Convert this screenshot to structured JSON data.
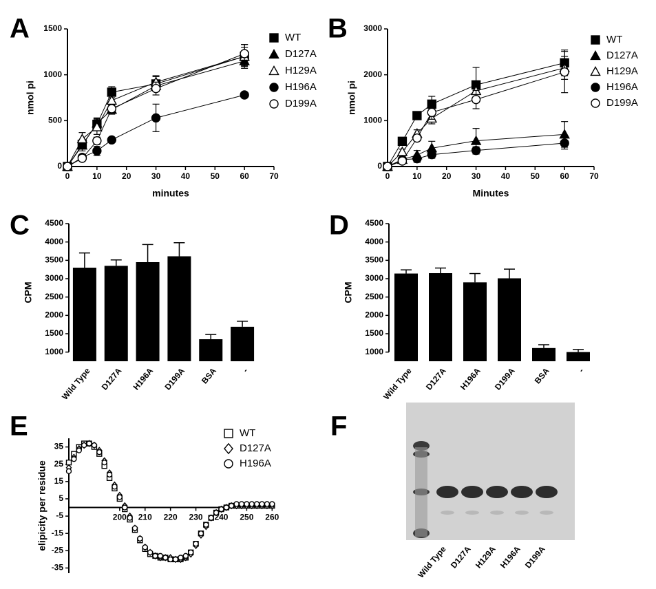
{
  "panel_labels": [
    "A",
    "B",
    "C",
    "D",
    "E",
    "F"
  ],
  "chart_data": [
    {
      "type": "scatter",
      "x_label": "minutes",
      "y_label": "nmol pi",
      "x": [
        0,
        5,
        10,
        15,
        30,
        60
      ],
      "xlim": [
        0,
        70
      ],
      "xticks": [
        0,
        10,
        20,
        30,
        40,
        50,
        60,
        70
      ],
      "ylim": [
        0,
        1500
      ],
      "yticks": [
        0,
        500,
        1000,
        1500
      ],
      "fit_curve": true,
      "series": [
        {
          "name": "WT",
          "color": "#000000",
          "marker": "square",
          "filled": true,
          "values": [
            0,
            240,
            460,
            810,
            900,
            1200
          ],
          "errors": [
            0,
            50,
            60,
            60,
            80,
            130
          ]
        },
        {
          "name": "D127A",
          "color": "#000000",
          "marker": "triangle",
          "filled": true,
          "values": [
            0,
            230,
            470,
            620,
            880,
            1150
          ],
          "errors": [
            0,
            60,
            60,
            50,
            60,
            60
          ]
        },
        {
          "name": "H129A",
          "color": "#000000",
          "marker": "triangle",
          "filled": false,
          "values": [
            0,
            300,
            430,
            720,
            920,
            1200
          ],
          "errors": [
            0,
            70,
            80,
            60,
            70,
            100
          ]
        },
        {
          "name": "H196A",
          "color": "#000000",
          "marker": "circle",
          "filled": true,
          "values": [
            0,
            100,
            170,
            290,
            530,
            780
          ],
          "errors": [
            0,
            30,
            50,
            20,
            150,
            20
          ]
        },
        {
          "name": "D199A",
          "color": "#000000",
          "marker": "circle",
          "filled": false,
          "values": [
            0,
            90,
            280,
            630,
            850,
            1230
          ],
          "errors": [
            0,
            30,
            40,
            40,
            70,
            100
          ]
        }
      ]
    },
    {
      "type": "scatter",
      "x_label": "Minutes",
      "y_label": "nmol pi",
      "x": [
        0,
        5,
        10,
        15,
        30,
        60
      ],
      "xlim": [
        0,
        70
      ],
      "xticks": [
        0,
        10,
        20,
        30,
        40,
        50,
        60,
        70
      ],
      "ylim": [
        0,
        3000
      ],
      "yticks": [
        0,
        1000,
        2000,
        3000
      ],
      "fit_curve": true,
      "series": [
        {
          "name": "WT",
          "color": "#000000",
          "marker": "square",
          "filled": true,
          "values": [
            0,
            550,
            1110,
            1360,
            1780,
            2260
          ],
          "errors": [
            0,
            50,
            70,
            170,
            380,
            280
          ]
        },
        {
          "name": "D127A",
          "color": "#000000",
          "marker": "triangle",
          "filled": true,
          "values": [
            0,
            150,
            250,
            400,
            560,
            700
          ],
          "errors": [
            0,
            50,
            100,
            150,
            270,
            280
          ]
        },
        {
          "name": "H129A",
          "color": "#000000",
          "marker": "triangle",
          "filled": false,
          "values": [
            0,
            320,
            720,
            1050,
            1650,
            2150
          ],
          "errors": [
            0,
            60,
            80,
            120,
            200,
            250
          ]
        },
        {
          "name": "H196A",
          "color": "#000000",
          "marker": "circle",
          "filled": true,
          "values": [
            0,
            150,
            170,
            260,
            350,
            510
          ],
          "errors": [
            0,
            40,
            80,
            80,
            80,
            130
          ]
        },
        {
          "name": "D199A",
          "color": "#000000",
          "marker": "circle",
          "filled": false,
          "values": [
            0,
            120,
            620,
            1180,
            1460,
            2060
          ],
          "errors": [
            0,
            30,
            60,
            150,
            200,
            450
          ]
        }
      ]
    },
    {
      "type": "bar",
      "y_label": "CPM",
      "categories": [
        "Wild Type",
        "D127A",
        "H196A",
        "D199A",
        "BSA",
        "-"
      ],
      "values": [
        3300,
        3350,
        3450,
        3610,
        1350,
        1690
      ],
      "errors": [
        400,
        160,
        480,
        370,
        130,
        150
      ],
      "color": "#000000",
      "ylim": [
        750,
        4500
      ],
      "yticks": [
        1000,
        1500,
        2000,
        2500,
        3000,
        3500,
        4000,
        4500
      ]
    },
    {
      "type": "bar",
      "y_label": "CPM",
      "categories": [
        "Wild Type",
        "D127A",
        "H196A",
        "D199A",
        "BSA",
        "-"
      ],
      "values": [
        3140,
        3150,
        2900,
        3010,
        1110,
        1000
      ],
      "errors": [
        100,
        140,
        240,
        250,
        90,
        70
      ],
      "color": "#000000",
      "ylim": [
        750,
        4500
      ],
      "yticks": [
        1000,
        1500,
        2000,
        2500,
        3000,
        3500,
        4000,
        4500
      ]
    },
    {
      "type": "scatter",
      "y_label": "elipicity per residue",
      "x_axis_at_zero": true,
      "x": [
        180,
        182,
        184,
        186,
        188,
        190,
        192,
        194,
        196,
        198,
        200,
        202,
        204,
        206,
        208,
        210,
        212,
        214,
        216,
        218,
        220,
        222,
        224,
        226,
        228,
        230,
        232,
        234,
        236,
        238,
        240,
        242,
        244,
        246,
        248,
        250,
        252,
        254,
        256,
        258,
        260
      ],
      "xlim": [
        180,
        261
      ],
      "xticks": [
        200,
        210,
        220,
        230,
        240,
        250,
        260
      ],
      "ylim": [
        -38,
        40
      ],
      "yticks": [
        -35,
        -25,
        -15,
        -5,
        5,
        15,
        25,
        35
      ],
      "series": [
        {
          "name": "WT",
          "color": "#000000",
          "marker": "square",
          "filled": false,
          "values": [
            26,
            31,
            35,
            37,
            37,
            35,
            31,
            24,
            17,
            11,
            5,
            -1,
            -7,
            -13,
            -19,
            -24,
            -27,
            -28,
            -29,
            -29,
            -30,
            -30,
            -30,
            -29,
            -26,
            -21,
            -15,
            -10,
            -6,
            -3,
            -1,
            0,
            1,
            1,
            1,
            1,
            1,
            1,
            1,
            1,
            1
          ]
        },
        {
          "name": "D127A",
          "color": "#000000",
          "marker": "diamond",
          "filled": false,
          "values": [
            23,
            29,
            34,
            36,
            37,
            36,
            33,
            27,
            20,
            13,
            7,
            1,
            -5,
            -12,
            -18,
            -23,
            -26,
            -28,
            -29,
            -29,
            -29,
            -30,
            -30,
            -29,
            -27,
            -22,
            -16,
            -11,
            -6,
            -3,
            -1,
            0,
            1,
            1,
            1,
            1,
            1,
            1,
            1,
            1,
            1
          ]
        },
        {
          "name": "H196A",
          "color": "#000000",
          "marker": "circle",
          "filled": false,
          "values": [
            21,
            28,
            33,
            36,
            37,
            36,
            32,
            26,
            19,
            12,
            6,
            0,
            -6,
            -12,
            -18,
            -23,
            -26,
            -28,
            -28,
            -29,
            -30,
            -30,
            -29,
            -28,
            -26,
            -21,
            -15,
            -10,
            -6,
            -3,
            -1,
            0,
            1,
            2,
            2,
            2,
            2,
            2,
            2,
            2,
            2
          ]
        }
      ]
    },
    {
      "type": "gel",
      "categories": [
        "Wild Type",
        "D127A",
        "H129A",
        "H196A",
        "D199A"
      ]
    }
  ]
}
